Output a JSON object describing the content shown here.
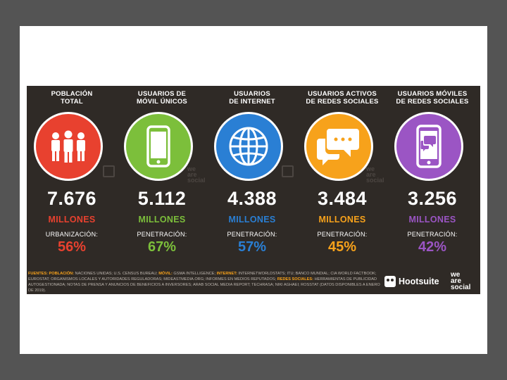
{
  "colors": {
    "background": "#545454",
    "panel": "#2f2a26",
    "poblacion": "#e8412f",
    "movil": "#7cbf3b",
    "internet": "#2a7fd4",
    "redes": "#f7a21b",
    "moviles_redes": "#9b55c4"
  },
  "columns": [
    {
      "title": "POBLACIÓN\nTOTAL",
      "icon": "people-icon",
      "value": "7.676",
      "unit": "MILLONES",
      "sublabel": "URBANIZACIÓN:",
      "percent": "56%"
    },
    {
      "title": "USUARIOS DE\nMÓVIL ÚNICOS",
      "icon": "mobile-phone-icon",
      "value": "5.112",
      "unit": "MILLONES",
      "sublabel": "PENETRACIÓN:",
      "percent": "67%"
    },
    {
      "title": "USUARIOS\nDE INTERNET",
      "icon": "globe-icon",
      "value": "4.388",
      "unit": "MILLONES",
      "sublabel": "PENETRACIÓN:",
      "percent": "57%"
    },
    {
      "title": "USUARIOS ACTIVOS\nDE REDES SOCIALES",
      "icon": "chat-bubbles-icon",
      "value": "3.484",
      "unit": "MILLONES",
      "sublabel": "PENETRACIÓN:",
      "percent": "45%"
    },
    {
      "title": "USUARIOS MÓVILES\nDE REDES SOCIALES",
      "icon": "mobile-chat-icon",
      "value": "3.256",
      "unit": "MILLONES",
      "sublabel": "PENETRACIÓN:",
      "percent": "42%"
    }
  ],
  "watermark": [
    "we",
    "are",
    "social"
  ],
  "sources": {
    "label": "FUENTES:",
    "part1_hl": "POBLACIÓN:",
    "part1": " NACIONES UNIDAS; U.S. CENSUS BUREAU; ",
    "part2_hl": "MÓVIL:",
    "part2": " GSMA INTELLIGENCE; ",
    "part3_hl": "INTERNET:",
    "part3": " INTERNETWORLDSTATS; ITU; BANCO MUNDIAL; CIA WORLD FACTBOOK; EUROSTAT; ORGANISMOS LOCALES Y AUTORIDADES REGULADORAS; MIDEASTMEDIA.ORG; INFORMES EN MEDIOS REPUTADOS; ",
    "part4_hl": "REDES SOCIALES:",
    "part4": " HERRAMIENTAS DE PUBLICIDAD AUTOGESTIONADA; NOTAS DE PRENSA Y ANUNCIOS DE BENEFICIOS A INVERSORES; ARAB SOCIAL MEDIA REPORT; TECHRASA; NIKI AGHAEI; ROSSTAT (DATOS DISPONIBLES A ENERO DE 2019)."
  },
  "brand": {
    "hootsuite": "Hootsuite",
    "wearesocial": [
      "we",
      "are",
      "social"
    ]
  }
}
